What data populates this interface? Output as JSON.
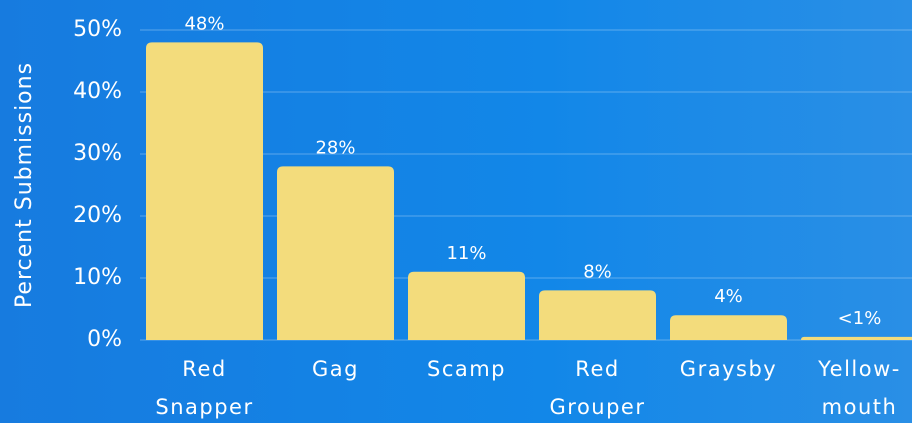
{
  "chart_data": {
    "type": "bar",
    "y_axis_label": "Percent Submissions",
    "categories": [
      "Red\nSnapper",
      "Gag",
      "Scamp",
      "Red\nGrouper",
      "Graysby",
      "Yellow-\nmouth"
    ],
    "values": [
      48,
      28,
      11,
      8,
      4,
      0.5
    ],
    "value_labels": [
      "48%",
      "28%",
      "11%",
      "8%",
      "4%",
      "<1%"
    ],
    "color": "#f3dc7c",
    "ylim": [
      0,
      50
    ],
    "yticks": [
      {
        "value": 0,
        "label": "0%"
      },
      {
        "value": 10,
        "label": "10%"
      },
      {
        "value": 20,
        "label": "20%"
      },
      {
        "value": 30,
        "label": "30%"
      },
      {
        "value": 40,
        "label": "40%"
      },
      {
        "value": 50,
        "label": "50%"
      }
    ],
    "grid": true
  }
}
